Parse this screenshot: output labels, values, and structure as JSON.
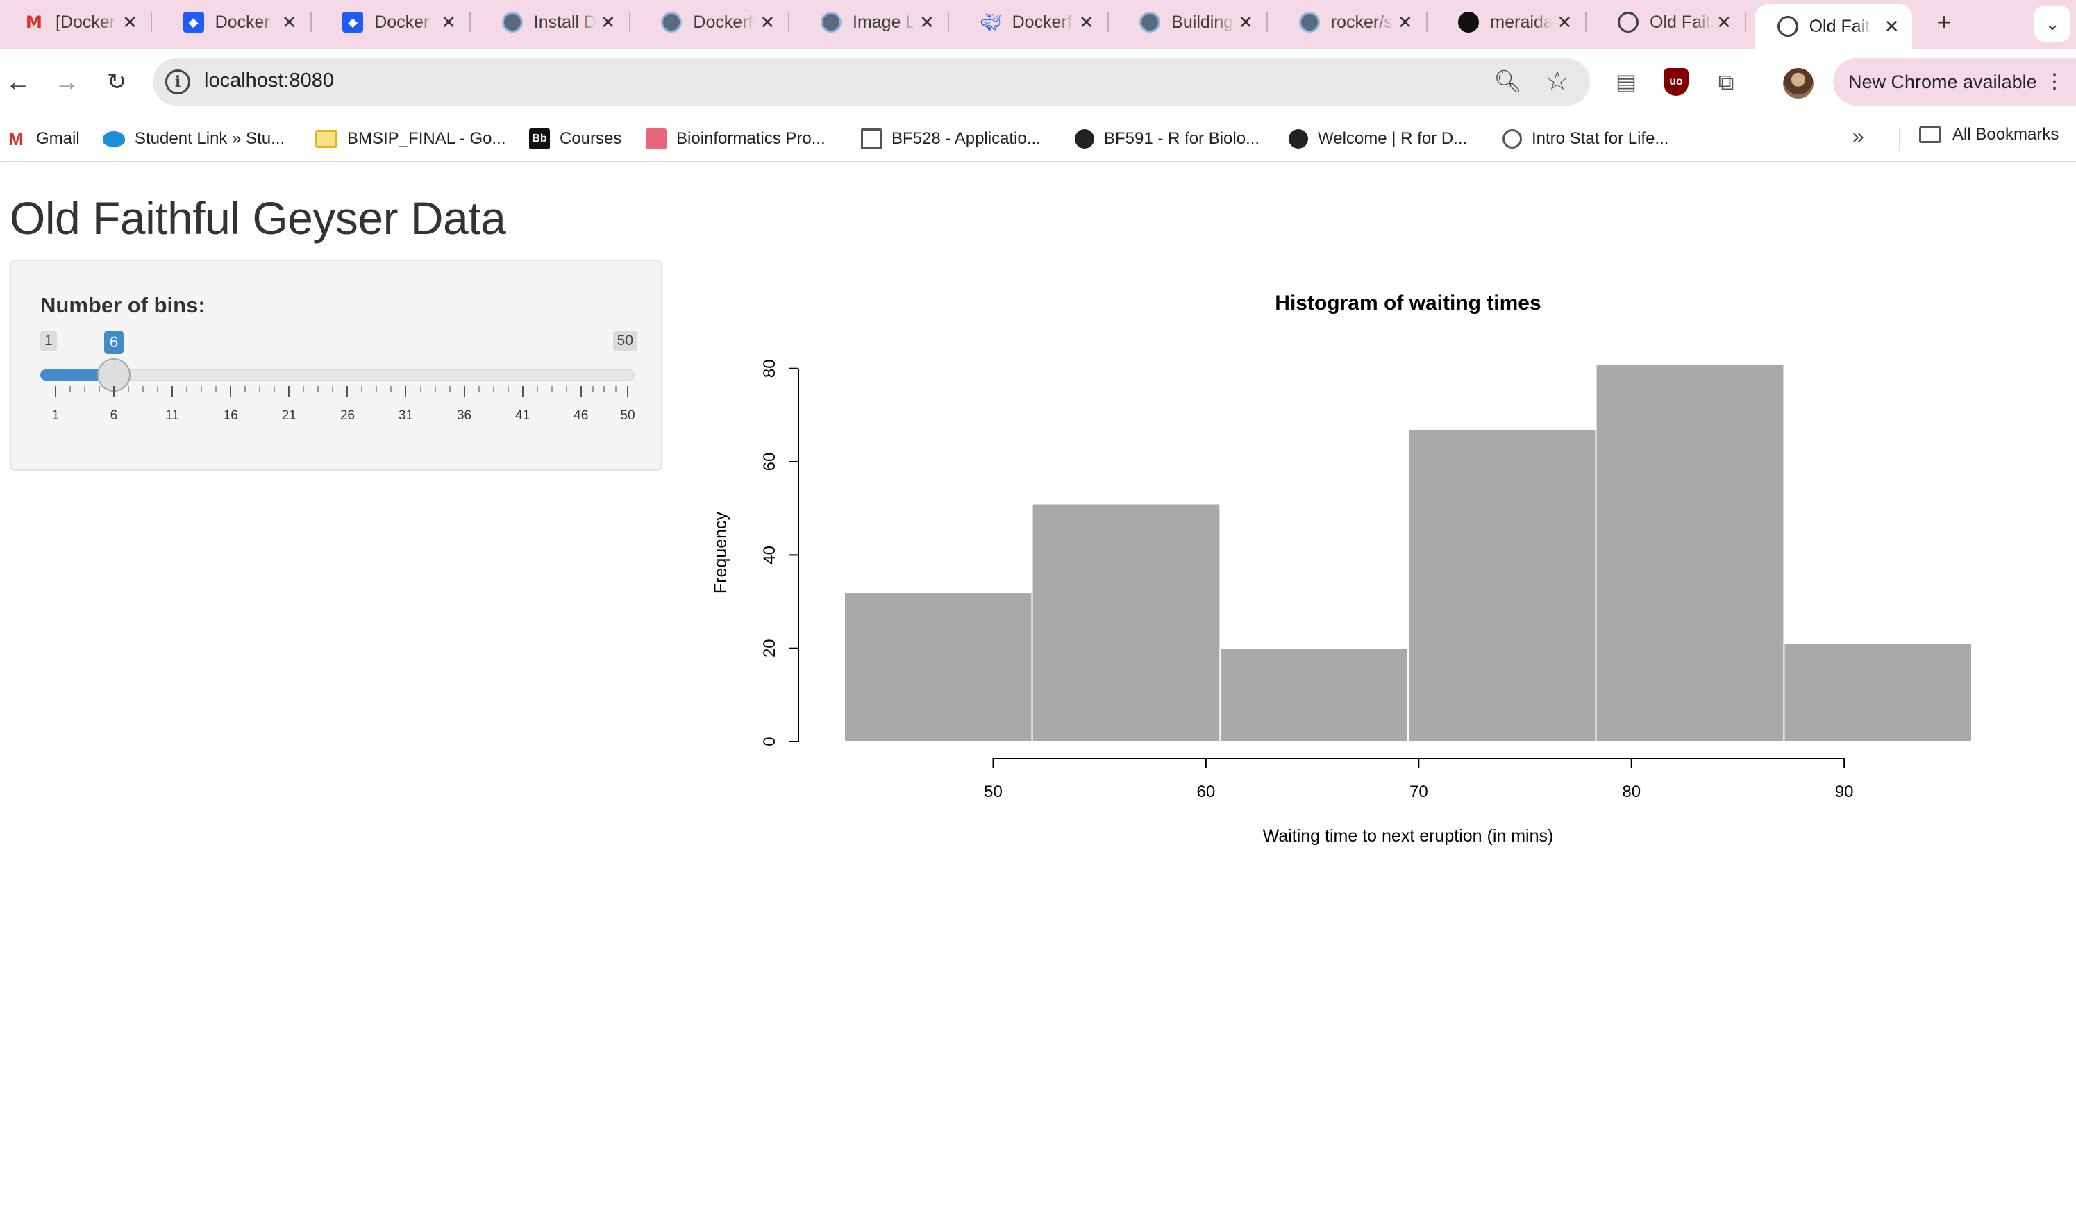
{
  "browser": {
    "tabs": [
      {
        "title": "[Docker",
        "icon": "gmail-icon",
        "active": false
      },
      {
        "title": "Docker",
        "icon": "dropbox-icon",
        "active": false
      },
      {
        "title": "Docker",
        "icon": "dropbox-icon",
        "active": false
      },
      {
        "title": "Install D",
        "icon": "docker-icon",
        "active": false
      },
      {
        "title": "Dockerf",
        "icon": "docker-icon",
        "active": false
      },
      {
        "title": "Image L",
        "icon": "docker-icon",
        "active": false
      },
      {
        "title": "Dockerf",
        "icon": "docker-whale-icon",
        "active": false
      },
      {
        "title": "Building",
        "icon": "docker-icon",
        "active": false
      },
      {
        "title": "rocker/s",
        "icon": "docker-icon",
        "active": false
      },
      {
        "title": "meraida",
        "icon": "github-icon",
        "active": false
      },
      {
        "title": "Old Fait",
        "icon": "globe-icon",
        "active": false
      },
      {
        "title": "Old Fait",
        "icon": "globe-icon",
        "active": true
      }
    ],
    "url": "localhost:8080",
    "update_label": "New Chrome available",
    "bookmarks": [
      {
        "label": "Gmail",
        "icon": "gmail-icon"
      },
      {
        "label": "Student Link » Stu...",
        "icon": "cloud-icon"
      },
      {
        "label": "BMSIP_FINAL - Go...",
        "icon": "slides-icon"
      },
      {
        "label": "Courses",
        "icon": "blackboard-icon"
      },
      {
        "label": "Bioinformatics Pro...",
        "icon": "bio-icon"
      },
      {
        "label": "BF528 - Applicatio...",
        "icon": "doc-icon"
      },
      {
        "label": "BF591 - R for Biolo...",
        "icon": "globe-icon"
      },
      {
        "label": "Welcome | R for D...",
        "icon": "globe-icon"
      },
      {
        "label": "Intro Stat for Life...",
        "icon": "shield-icon"
      }
    ],
    "all_bookmarks_label": "All Bookmarks"
  },
  "app": {
    "title": "Old Faithful Geyser Data",
    "slider": {
      "label": "Number of bins:",
      "min": 1,
      "max": 50,
      "value": 6,
      "min_label": "1",
      "max_label": "50",
      "value_label": "6",
      "grid_labels": [
        "1",
        "6",
        "11",
        "16",
        "21",
        "26",
        "31",
        "36",
        "41",
        "46",
        "50"
      ]
    }
  },
  "chart_data": {
    "type": "bar",
    "title": "Histogram of waiting times",
    "xlabel": "Waiting time to next eruption (in mins)",
    "ylabel": "Frequency",
    "bins": [
      {
        "start": 43.0,
        "end": 51.83,
        "count": 32
      },
      {
        "start": 51.83,
        "end": 60.67,
        "count": 51
      },
      {
        "start": 60.67,
        "end": 69.5,
        "count": 20
      },
      {
        "start": 69.5,
        "end": 78.33,
        "count": 67
      },
      {
        "start": 78.33,
        "end": 87.17,
        "count": 81
      },
      {
        "start": 87.17,
        "end": 96.0,
        "count": 21
      }
    ],
    "x_ticks": [
      50,
      60,
      70,
      80,
      90
    ],
    "y_ticks": [
      0,
      20,
      40,
      60,
      80
    ],
    "xlim": [
      43,
      96
    ],
    "ylim": [
      0,
      81
    ],
    "bar_color": "#a9a9a9",
    "grid": false,
    "legend": "none"
  }
}
